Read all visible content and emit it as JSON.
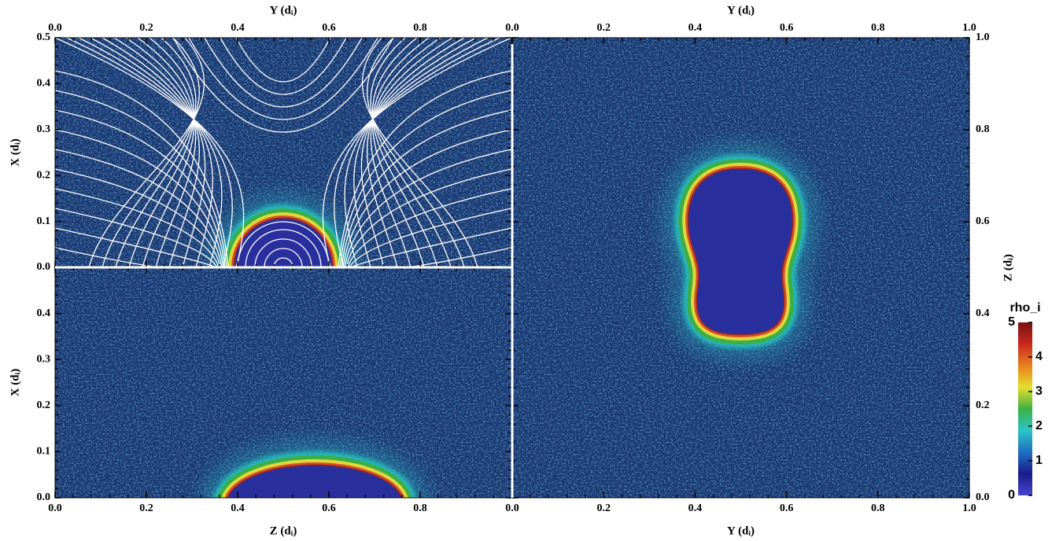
{
  "chart_data": [
    {
      "type": "heatmap",
      "xlabel": "Y (dᵢ)",
      "ylabel": "X (dᵢ)",
      "xlim": [
        0,
        1
      ],
      "ylim": [
        0,
        0.5
      ],
      "xticks": [
        {
          "value": 0,
          "label": "0.0"
        },
        0.2,
        0.4,
        0.6,
        0.8
      ],
      "yticks": [
        {
          "value": 0,
          "label": "0.0"
        },
        0.1,
        0.2,
        0.3,
        0.4,
        0.5
      ],
      "field_lines": true
    },
    {
      "type": "heatmap",
      "xlabel": "Z (dᵢ)",
      "ylabel": "X (dᵢ)",
      "xlim": [
        0,
        1
      ],
      "ylim": [
        0,
        0.5
      ],
      "xticks": [
        {
          "value": 0,
          "label": "0.0"
        },
        0.2,
        0.4,
        0.6,
        0.8
      ],
      "yticks": [
        {
          "value": 0,
          "label": "0.0"
        },
        0.1,
        0.2,
        0.3,
        0.4
      ],
      "field_lines": false
    },
    {
      "type": "heatmap",
      "xlabel": "Y (dᵢ)",
      "ylabel": "Z (dᵢ)",
      "xlim": [
        0,
        1
      ],
      "ylim": [
        0,
        1
      ],
      "xticks": [
        {
          "value": 0,
          "label": "0.0"
        },
        0.2,
        0.4,
        0.6,
        0.8,
        {
          "value": 1,
          "label": "1.0"
        }
      ],
      "yticks": [
        {
          "value": 0,
          "label": "0.0"
        },
        0.2,
        0.4,
        0.6,
        0.8,
        {
          "value": 1,
          "label": "1.0"
        }
      ],
      "field_lines": false,
      "colorbar": {
        "title": "rho_i",
        "lim": [
          0,
          5
        ],
        "ticks": [
          0,
          1,
          2,
          3,
          4,
          5
        ],
        "colors": [
          "#4646d2",
          "#1a1a8c",
          "#1f6fc0",
          "#2cc4c8",
          "#3cb043",
          "#e6e02c",
          "#e8801e",
          "#c8281e",
          "#7a1010"
        ]
      }
    }
  ]
}
